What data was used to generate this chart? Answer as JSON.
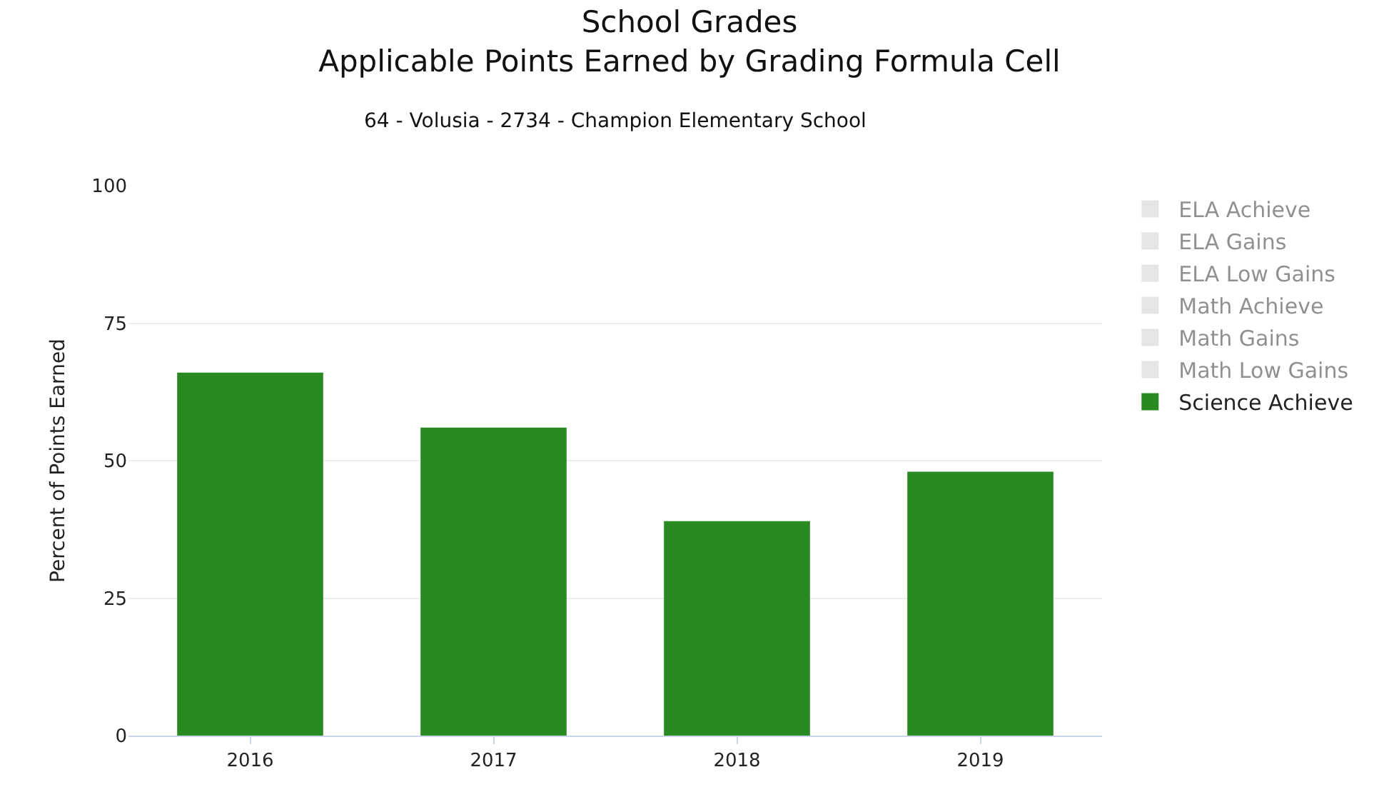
{
  "chart_data": {
    "type": "bar",
    "title": "School Grades\nApplicable Points Earned by Grading Formula Cell",
    "subtitle": "64 - Volusia - 2734 - Champion Elementary School",
    "ylabel": "Percent of Points Earned",
    "categories": [
      "2016",
      "2017",
      "2018",
      "2019"
    ],
    "series": [
      {
        "name": "ELA Achieve",
        "color": "#cccccc",
        "values": [
          null,
          null,
          null,
          null
        ]
      },
      {
        "name": "ELA Gains",
        "color": "#cccccc",
        "values": [
          null,
          null,
          null,
          null
        ]
      },
      {
        "name": "ELA Low Gains",
        "color": "#cccccc",
        "values": [
          null,
          null,
          null,
          null
        ]
      },
      {
        "name": "Math Achieve",
        "color": "#cccccc",
        "values": [
          null,
          null,
          null,
          null
        ]
      },
      {
        "name": "Math Gains",
        "color": "#cccccc",
        "values": [
          null,
          null,
          null,
          null
        ]
      },
      {
        "name": "Math Low Gains",
        "color": "#cccccc",
        "values": [
          null,
          null,
          null,
          null
        ]
      },
      {
        "name": "Science Achieve",
        "color": "#2a8a22",
        "values": [
          66,
          56,
          39,
          48
        ]
      }
    ],
    "ylim": [
      0,
      100
    ],
    "yticks": [
      0,
      25,
      50,
      75,
      100
    ],
    "grid": "y",
    "legend": "top right"
  }
}
